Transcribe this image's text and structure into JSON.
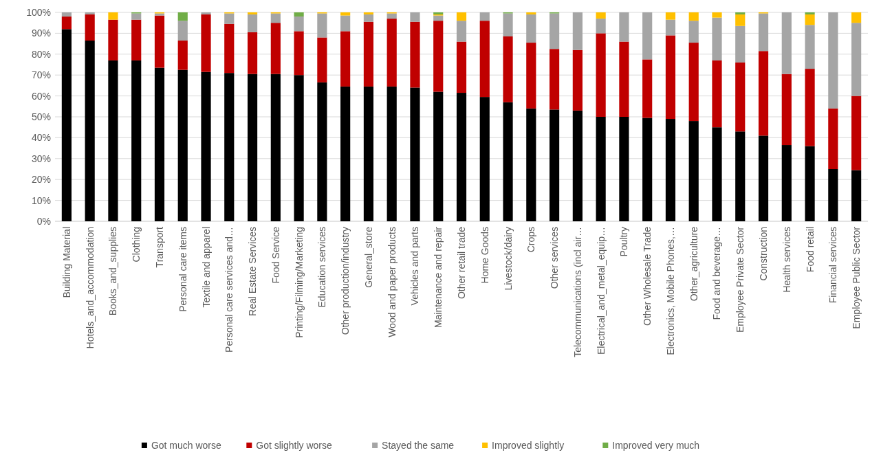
{
  "chart_data": {
    "type": "bar",
    "stacked": true,
    "categories": [
      "Building Material",
      "Hotels_and_accommodation",
      "Books_and_supplies",
      "Clothing",
      "Transport",
      "Personal care items",
      "Textile and apparel",
      "Personal care services and…",
      "Real Estate Services",
      "Food Service",
      "Printing/Filming/Marketing",
      "Education services",
      "Other production/industry",
      "General_store",
      "Wood and paper products",
      "Vehicles and parts",
      "Maintenance and repair",
      "Other retail trade",
      "Home Goods",
      "Livestock/dairy",
      "Crops",
      "Other services",
      "Telecommunications (incl air…",
      "Electrical_and_metal_equip…",
      "Poultry",
      "Other Wholesale Trade",
      "Electronics, Mobile Phones,…",
      "Other_agriculture",
      "Food and beverage…",
      "Employee Private Sector",
      "Construction",
      "Health services",
      "Food retail",
      "Financial services",
      "Employee Public Sector"
    ],
    "series": [
      {
        "name": "Got much worse",
        "color": "#000000",
        "values": [
          92,
          86.5,
          77,
          77,
          73.5,
          72.5,
          71.5,
          71,
          70.5,
          70.5,
          70,
          66.5,
          64.5,
          64.5,
          64.5,
          64,
          62,
          61.5,
          59.5,
          57,
          54,
          53.5,
          53,
          50,
          50,
          49.5,
          49,
          48,
          45,
          43,
          41,
          36.5,
          36,
          25,
          24.5
        ]
      },
      {
        "name": "Got slightly worse",
        "color": "#c00000",
        "values": [
          6,
          12.5,
          19.5,
          19.5,
          25,
          14,
          27.5,
          23.5,
          20,
          24.5,
          21,
          21.5,
          26.5,
          31,
          32.5,
          31.5,
          34,
          24.5,
          36.5,
          31.5,
          31.5,
          29,
          29,
          40,
          36,
          28,
          40,
          37.5,
          32,
          33,
          40.5,
          34,
          37,
          29,
          35.5
        ]
      },
      {
        "name": "Stayed the same",
        "color": "#a5a5a5",
        "values": [
          2,
          1,
          0,
          3,
          1,
          9.5,
          1,
          5,
          8.5,
          4.5,
          7,
          11.5,
          7.5,
          3.5,
          2.5,
          4.5,
          2.5,
          10,
          4,
          11,
          13.5,
          17,
          18,
          7,
          14,
          22.5,
          7.5,
          10.5,
          20.5,
          17.5,
          18,
          29.5,
          21,
          46,
          35
        ]
      },
      {
        "name": "Improved slightly",
        "color": "#ffc000",
        "values": [
          0,
          0,
          3.5,
          0,
          0.5,
          0,
          0,
          0.5,
          1,
          0.5,
          0,
          0.5,
          1.5,
          1,
          0.5,
          0,
          0.5,
          4,
          0,
          0,
          1,
          0,
          0,
          3,
          0,
          0,
          3.5,
          4,
          2.5,
          5.5,
          0.5,
          0,
          5,
          0,
          5
        ]
      },
      {
        "name": "Improved very much",
        "color": "#70ad47",
        "values": [
          0,
          0,
          0,
          0.5,
          0,
          4,
          0,
          0,
          0,
          0,
          2,
          0,
          0,
          0,
          0,
          0,
          1,
          0,
          0,
          0.5,
          0,
          0.5,
          0,
          0,
          0,
          0,
          0,
          0,
          0,
          1,
          0,
          0,
          1,
          0,
          0
        ]
      }
    ],
    "ylim": [
      0,
      100
    ],
    "yticks": [
      {
        "value": 0,
        "label": "0%"
      },
      {
        "value": 10,
        "label": "10%"
      },
      {
        "value": 20,
        "label": "20%"
      },
      {
        "value": 30,
        "label": "30%"
      },
      {
        "value": 40,
        "label": "40%"
      },
      {
        "value": 50,
        "label": "50%"
      },
      {
        "value": 60,
        "label": "60%"
      },
      {
        "value": 70,
        "label": "70%"
      },
      {
        "value": 80,
        "label": "80%"
      },
      {
        "value": 90,
        "label": "90%"
      },
      {
        "value": 100,
        "label": "100%"
      }
    ],
    "grid": "y",
    "legend": "bottom"
  }
}
